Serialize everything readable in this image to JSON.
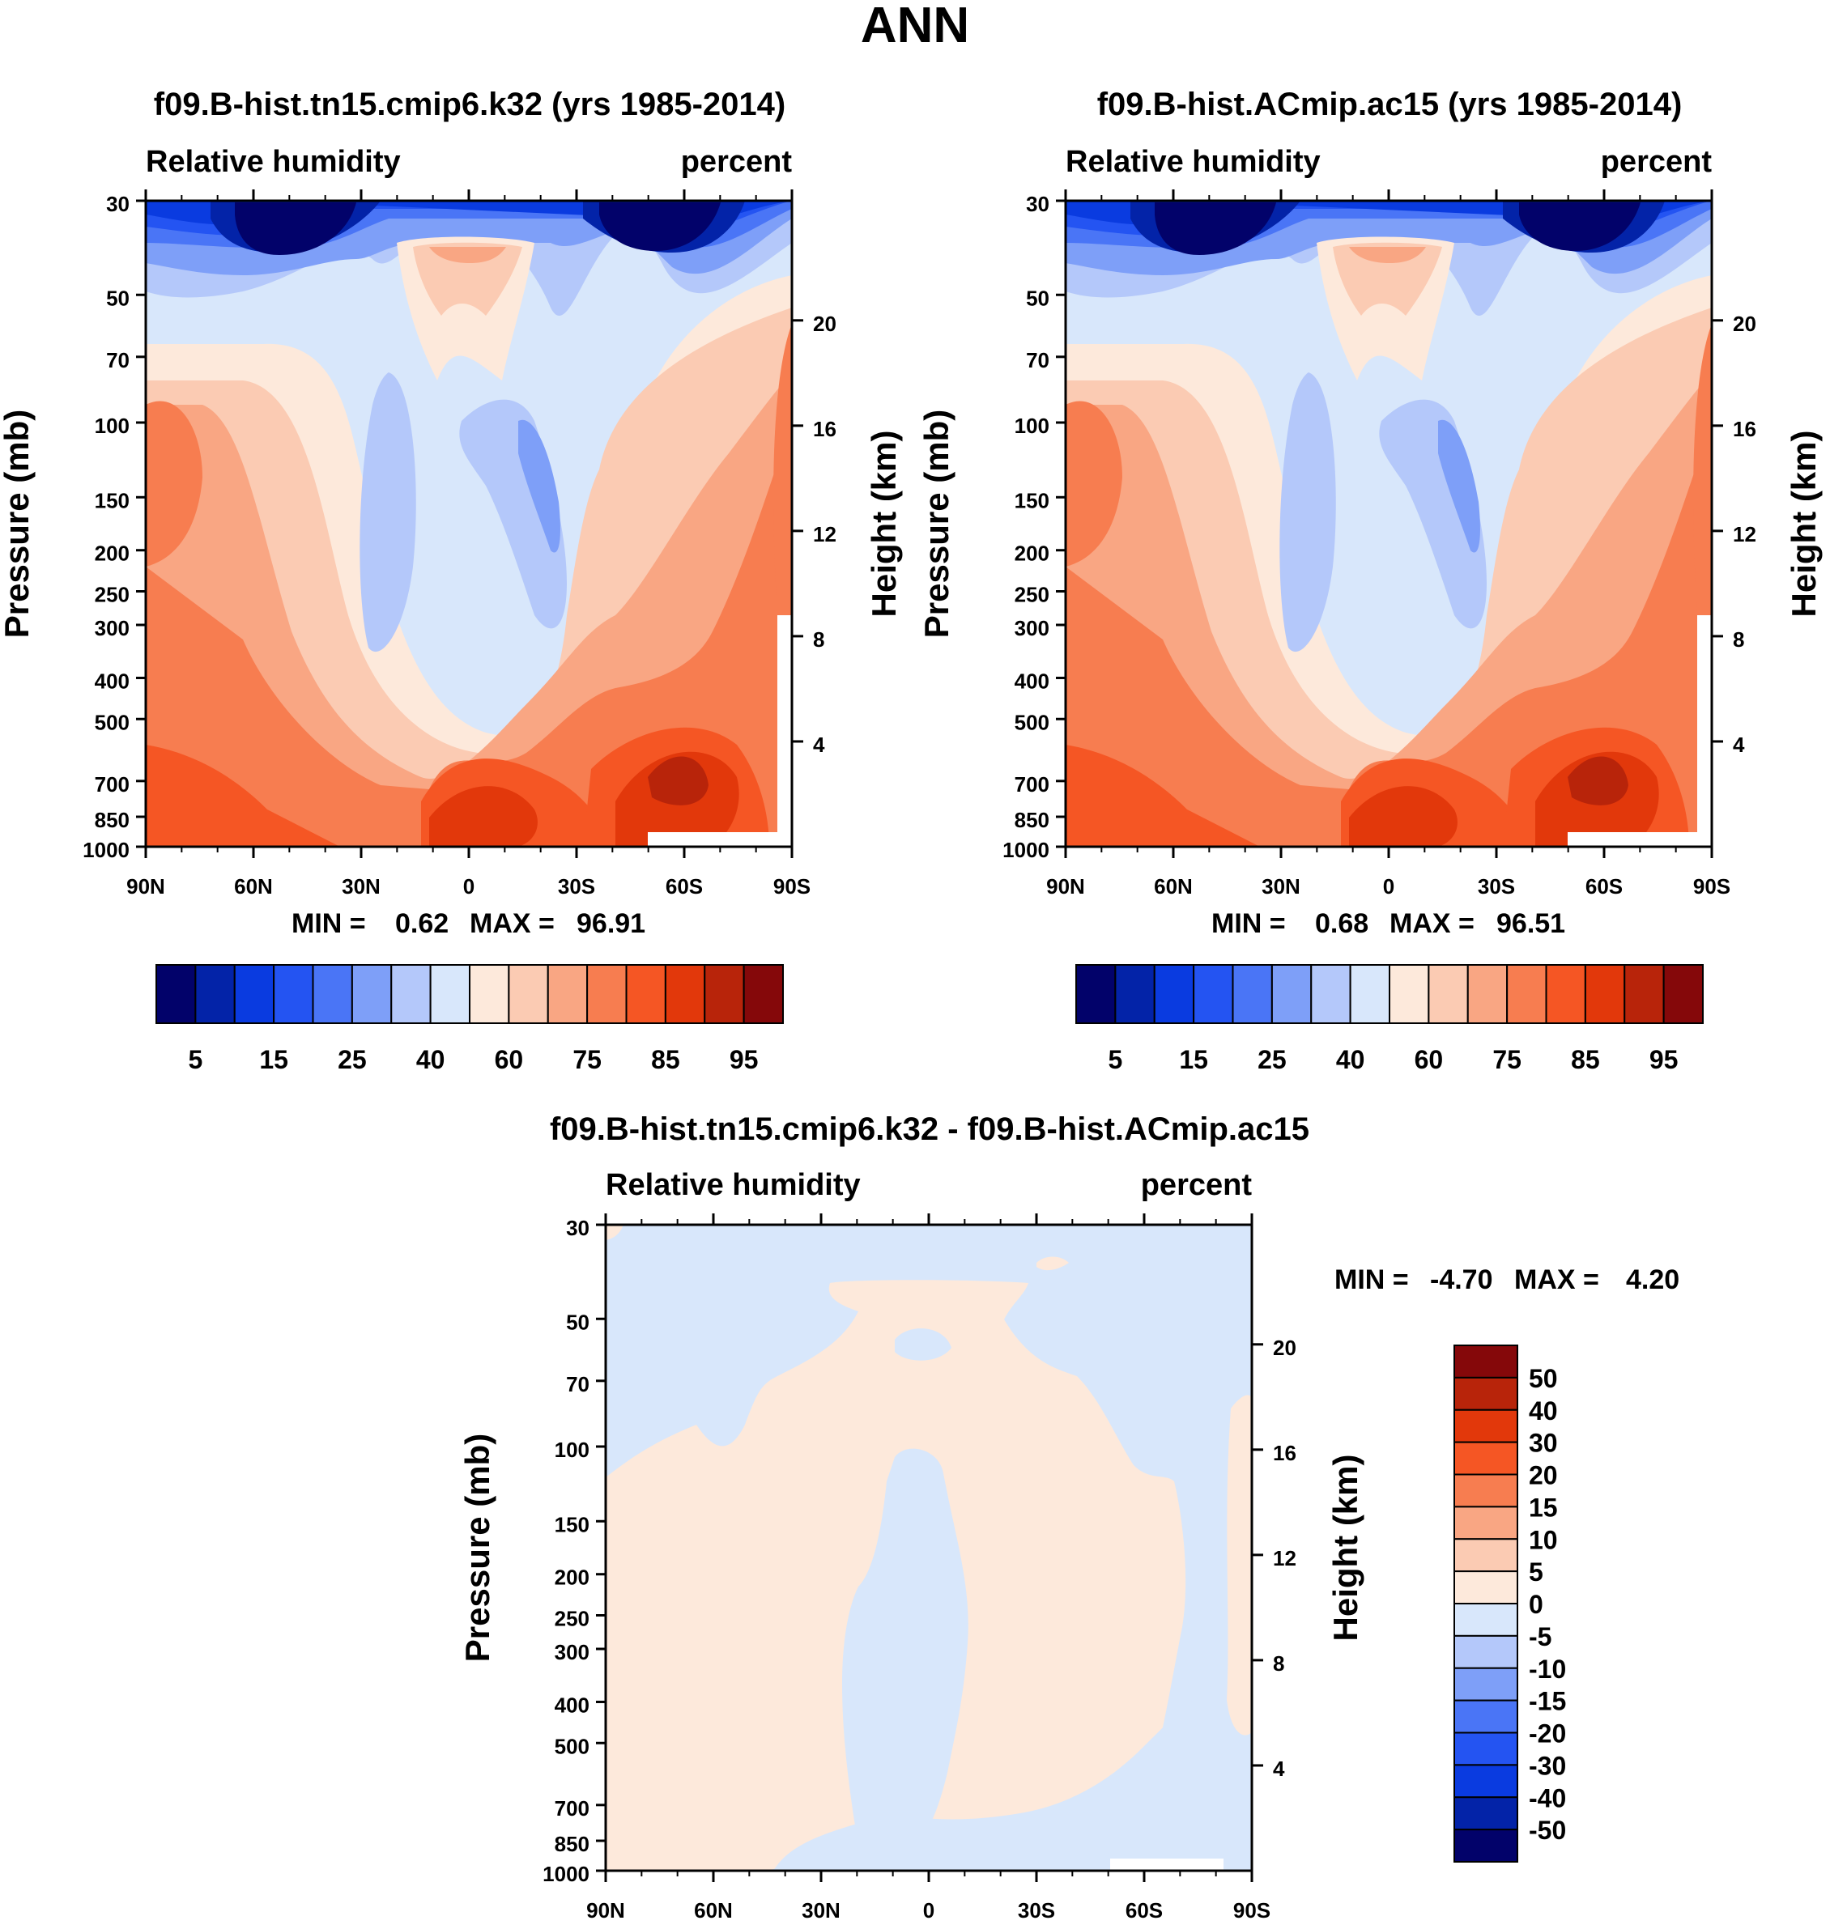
{
  "page_title": "ANN",
  "colors": {
    "blues": [
      "#02026a",
      "#0323a8",
      "#0a3be0",
      "#2454f2",
      "#4a75f6",
      "#7e9ff8",
      "#b4c8fa",
      "#d8e7fb"
    ],
    "reds": [
      "#fde9db",
      "#fbcbb3",
      "#f9a683",
      "#f77d50",
      "#f55624",
      "#e2380b",
      "#b8240a",
      "#85080a"
    ],
    "panel_fill": "#ffffff",
    "frame": "#000000"
  },
  "chart_data": [
    {
      "type": "heatmap",
      "name": "panel-top-left",
      "title": "f09.B-hist.tn15.cmip6.k32 (yrs 1985-2014)",
      "left_label": "Relative humidity",
      "right_label": "percent",
      "xlabel": "",
      "ylabel": "Pressure (mb)",
      "ylabel_right": "Height (km)",
      "x_ticks": [
        "90N",
        "60N",
        "30N",
        "0",
        "30S",
        "60S",
        "90S"
      ],
      "x_values": [
        90,
        60,
        30,
        0,
        -30,
        -60,
        -90
      ],
      "y_ticks": [
        "30",
        "50",
        "70",
        "100",
        "150",
        "200",
        "250",
        "300",
        "400",
        "500",
        "700",
        "850",
        "1000"
      ],
      "y_values": [
        30,
        50,
        70,
        100,
        150,
        200,
        250,
        300,
        400,
        500,
        700,
        850,
        1000
      ],
      "right_ticks": [
        "20",
        "16",
        "12",
        "8",
        "4"
      ],
      "right_values": [
        20,
        16,
        12,
        8,
        4
      ],
      "ylim": [
        30,
        1000
      ],
      "stats": {
        "min_label": "MIN =",
        "min": "0.62",
        "max_label": "MAX =",
        "max": "96.91"
      },
      "colorbar": {
        "orientation": "horizontal",
        "labels": [
          "5",
          "15",
          "25",
          "40",
          "60",
          "75",
          "85",
          "95"
        ],
        "levels": [
          5,
          10,
          15,
          20,
          25,
          30,
          40,
          50,
          60,
          70,
          75,
          80,
          85,
          90,
          95
        ]
      }
    },
    {
      "type": "heatmap",
      "name": "panel-top-right",
      "title": "f09.B-hist.ACmip.ac15 (yrs 1985-2014)",
      "left_label": "Relative humidity",
      "right_label": "percent",
      "xlabel": "",
      "ylabel": "Pressure (mb)",
      "ylabel_right": "Height (km)",
      "x_ticks": [
        "90N",
        "60N",
        "30N",
        "0",
        "30S",
        "60S",
        "90S"
      ],
      "x_values": [
        90,
        60,
        30,
        0,
        -30,
        -60,
        -90
      ],
      "y_ticks": [
        "30",
        "50",
        "70",
        "100",
        "150",
        "200",
        "250",
        "300",
        "400",
        "500",
        "700",
        "850",
        "1000"
      ],
      "y_values": [
        30,
        50,
        70,
        100,
        150,
        200,
        250,
        300,
        400,
        500,
        700,
        850,
        1000
      ],
      "right_ticks": [
        "20",
        "16",
        "12",
        "8",
        "4"
      ],
      "right_values": [
        20,
        16,
        12,
        8,
        4
      ],
      "ylim": [
        30,
        1000
      ],
      "stats": {
        "min_label": "MIN =",
        "min": "0.68",
        "max_label": "MAX =",
        "max": "96.51"
      },
      "colorbar": {
        "orientation": "horizontal",
        "labels": [
          "5",
          "15",
          "25",
          "40",
          "60",
          "75",
          "85",
          "95"
        ],
        "levels": [
          5,
          10,
          15,
          20,
          25,
          30,
          40,
          50,
          60,
          70,
          75,
          80,
          85,
          90,
          95
        ]
      }
    },
    {
      "type": "heatmap",
      "name": "panel-difference",
      "title": "f09.B-hist.tn15.cmip6.k32 - f09.B-hist.ACmip.ac15",
      "left_label": "Relative humidity",
      "right_label": "percent",
      "xlabel": "",
      "ylabel": "Pressure (mb)",
      "ylabel_right": "Height (km)",
      "x_ticks": [
        "90N",
        "60N",
        "30N",
        "0",
        "30S",
        "60S",
        "90S"
      ],
      "x_values": [
        90,
        60,
        30,
        0,
        -30,
        -60,
        -90
      ],
      "y_ticks": [
        "30",
        "50",
        "70",
        "100",
        "150",
        "200",
        "250",
        "300",
        "400",
        "500",
        "700",
        "850",
        "1000"
      ],
      "y_values": [
        30,
        50,
        70,
        100,
        150,
        200,
        250,
        300,
        400,
        500,
        700,
        850,
        1000
      ],
      "right_ticks": [
        "20",
        "16",
        "12",
        "8",
        "4"
      ],
      "right_values": [
        20,
        16,
        12,
        8,
        4
      ],
      "ylim": [
        30,
        1000
      ],
      "stats": {
        "min_label": "MIN =",
        "min": "-4.70",
        "max_label": "MAX =",
        "max": "4.20"
      },
      "colorbar": {
        "orientation": "vertical",
        "labels": [
          "50",
          "40",
          "30",
          "20",
          "15",
          "10",
          "5",
          "0",
          "-5",
          "-10",
          "-15",
          "-20",
          "-30",
          "-40",
          "-50"
        ],
        "levels": [
          50,
          40,
          30,
          20,
          15,
          10,
          5,
          0,
          -5,
          -10,
          -15,
          -20,
          -30,
          -40,
          -50
        ]
      }
    }
  ]
}
